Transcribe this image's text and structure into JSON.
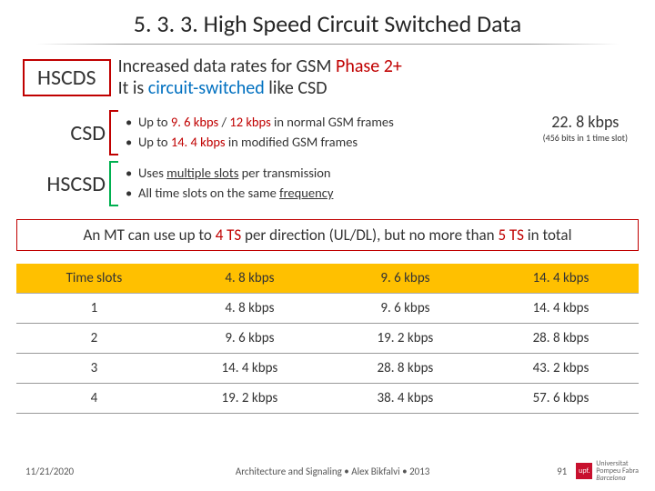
{
  "title": "5. 3. 3. High Speed Circuit Switched Data",
  "hscds": {
    "label": "HSCDS",
    "line1_pre": "Increased data rates for GSM ",
    "line1_red": "Phase 2+",
    "line2_pre": "It is ",
    "line2_blue": "circuit-switched",
    "line2_post": " like CSD"
  },
  "csd": {
    "label": "CSD",
    "b1_pre": "Up to ",
    "b1_r1": "9. 6 kbps",
    "b1_mid": " / ",
    "b1_r2": "12 kbps",
    "b1_post": " in normal GSM frames",
    "b2_pre": "Up to ",
    "b2_r": "14. 4 kbps",
    "b2_post": " in modified GSM frames",
    "rate": "22. 8 kbps",
    "rate_sub": "(456 bits in 1 time slot)"
  },
  "hscsd": {
    "label": "HSCSD",
    "b1_pre": "Uses ",
    "b1_u": "multiple slots",
    "b1_post": " per transmission",
    "b2_pre": "All time slots on the same ",
    "b2_u": "frequency"
  },
  "summary": {
    "p1": "An MT can use up to ",
    "r1": "4 TS",
    "p2": " per direction (UL/DL), but no more than ",
    "r2": "5 TS",
    "p3": " in total"
  },
  "table": {
    "headers": [
      "Time slots",
      "4. 8 kbps",
      "9. 6 kbps",
      "14. 4 kbps"
    ],
    "rows": [
      [
        "1",
        "4. 8 kbps",
        "9. 6 kbps",
        "14. 4 kbps"
      ],
      [
        "2",
        "9. 6 kbps",
        "19. 2 kbps",
        "28. 8 kbps"
      ],
      [
        "3",
        "14. 4 kbps",
        "28. 8 kbps",
        "43. 2 kbps"
      ],
      [
        "4",
        "19. 2 kbps",
        "38. 4 kbps",
        "57. 6 kbps"
      ]
    ]
  },
  "footer": {
    "date": "11/21/2020",
    "center": "Architecture and Signaling • Alex Bikfalvi • 2013",
    "page": "91",
    "logo_abbr": "upf.",
    "logo_t1": "Universitat",
    "logo_t2": "Pompeu Fabra",
    "logo_t3": "Barcelona"
  },
  "colors": {
    "red": "#c00000",
    "blue": "#0070c0",
    "green": "#00b050",
    "th_bg": "#ffc000"
  }
}
